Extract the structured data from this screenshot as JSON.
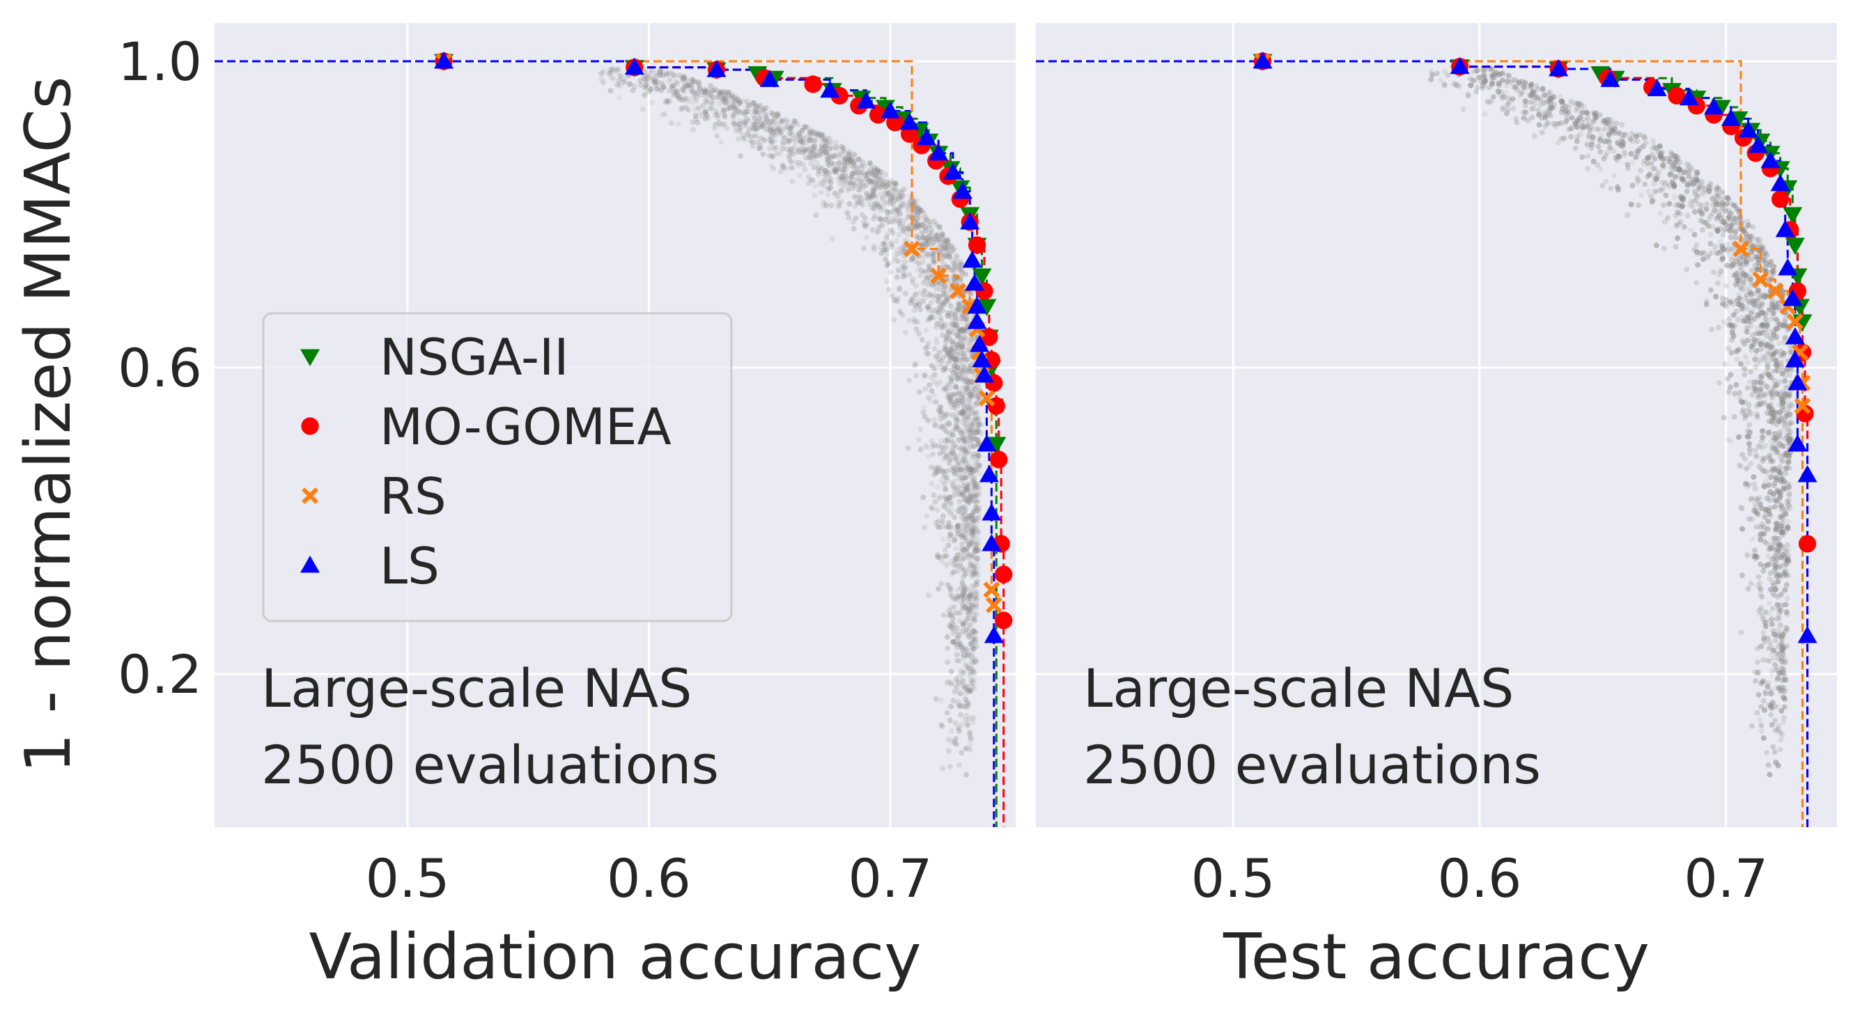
{
  "figure": {
    "ylabel": "1 - normalized MMACs",
    "background": "#EAEAF2",
    "grid_color": "#FFFFFF",
    "cloud_color": "#8C8C8C"
  },
  "legend": {
    "placement": "center-left",
    "entries": [
      {
        "label": "NSGA-II",
        "color": "#008000",
        "marker": "triangle-down"
      },
      {
        "label": "MO-GOMEA",
        "color": "#FF0000",
        "marker": "circle"
      },
      {
        "label": "RS",
        "color": "#FF7F0E",
        "marker": "x"
      },
      {
        "label": "LS",
        "color": "#0000FF",
        "marker": "triangle-up"
      }
    ]
  },
  "chart_data": [
    {
      "type": "scatter",
      "xlabel": "Validation accuracy",
      "ylabel": "1 - normalized MMACs",
      "annotation": [
        "Large-scale NAS",
        "2500 evaluations"
      ],
      "xlim": [
        0.42,
        0.752
      ],
      "ylim": [
        0.0,
        1.05
      ],
      "xticks": [
        0.5,
        0.6,
        0.7
      ],
      "yticks": [
        0.2,
        0.6,
        1.0
      ],
      "tick_labels_x": [
        "0.5",
        "0.6",
        "0.7"
      ],
      "tick_labels_y": [
        "0.2",
        "0.6",
        "1.0"
      ],
      "grid": true,
      "legend": "center-left",
      "series": [
        {
          "name": "NSGA-II",
          "color": "#008000",
          "marker": "triangle-down",
          "points": [
            [
              0.515,
              1.0
            ],
            [
              0.594,
              0.992
            ],
            [
              0.628,
              0.989
            ],
            [
              0.645,
              0.984
            ],
            [
              0.652,
              0.978
            ],
            [
              0.676,
              0.962
            ],
            [
              0.688,
              0.952
            ],
            [
              0.698,
              0.94
            ],
            [
              0.705,
              0.925
            ],
            [
              0.712,
              0.91
            ],
            [
              0.716,
              0.896
            ],
            [
              0.72,
              0.88
            ],
            [
              0.725,
              0.86
            ],
            [
              0.729,
              0.835
            ],
            [
              0.733,
              0.8
            ],
            [
              0.736,
              0.76
            ],
            [
              0.738,
              0.72
            ],
            [
              0.74,
              0.68
            ],
            [
              0.741,
              0.64
            ],
            [
              0.742,
              0.6
            ],
            [
              0.743,
              0.55
            ],
            [
              0.744,
              0.5
            ]
          ]
        },
        {
          "name": "MO-GOMEA",
          "color": "#FF0000",
          "marker": "circle",
          "points": [
            [
              0.515,
              1.0
            ],
            [
              0.594,
              0.992
            ],
            [
              0.628,
              0.989
            ],
            [
              0.648,
              0.978
            ],
            [
              0.668,
              0.97
            ],
            [
              0.679,
              0.955
            ],
            [
              0.687,
              0.942
            ],
            [
              0.695,
              0.93
            ],
            [
              0.702,
              0.92
            ],
            [
              0.708,
              0.905
            ],
            [
              0.713,
              0.89
            ],
            [
              0.719,
              0.87
            ],
            [
              0.724,
              0.85
            ],
            [
              0.729,
              0.82
            ],
            [
              0.733,
              0.79
            ],
            [
              0.736,
              0.76
            ],
            [
              0.739,
              0.7
            ],
            [
              0.741,
              0.64
            ],
            [
              0.742,
              0.61
            ],
            [
              0.743,
              0.58
            ],
            [
              0.744,
              0.55
            ],
            [
              0.745,
              0.48
            ],
            [
              0.746,
              0.37
            ],
            [
              0.747,
              0.33
            ],
            [
              0.747,
              0.27
            ]
          ]
        },
        {
          "name": "RS",
          "color": "#FF7F0E",
          "marker": "x",
          "points": [
            [
              0.515,
              1.0
            ],
            [
              0.709,
              0.755
            ],
            [
              0.72,
              0.72
            ],
            [
              0.728,
              0.7
            ],
            [
              0.733,
              0.68
            ],
            [
              0.736,
              0.65
            ],
            [
              0.737,
              0.62
            ],
            [
              0.738,
              0.59
            ],
            [
              0.74,
              0.56
            ],
            [
              0.742,
              0.31
            ],
            [
              0.743,
              0.29
            ]
          ]
        },
        {
          "name": "LS",
          "color": "#0000FF",
          "marker": "triangle-up",
          "points": [
            [
              0.515,
              1.0
            ],
            [
              0.594,
              0.992
            ],
            [
              0.628,
              0.989
            ],
            [
              0.65,
              0.976
            ],
            [
              0.675,
              0.962
            ],
            [
              0.69,
              0.948
            ],
            [
              0.7,
              0.935
            ],
            [
              0.708,
              0.92
            ],
            [
              0.715,
              0.9
            ],
            [
              0.72,
              0.88
            ],
            [
              0.726,
              0.855
            ],
            [
              0.73,
              0.83
            ],
            [
              0.733,
              0.79
            ],
            [
              0.734,
              0.74
            ],
            [
              0.735,
              0.71
            ],
            [
              0.736,
              0.68
            ],
            [
              0.736,
              0.66
            ],
            [
              0.737,
              0.63
            ],
            [
              0.738,
              0.61
            ],
            [
              0.739,
              0.59
            ],
            [
              0.74,
              0.5
            ],
            [
              0.741,
              0.46
            ],
            [
              0.742,
              0.41
            ],
            [
              0.742,
              0.37
            ],
            [
              0.743,
              0.25
            ]
          ]
        }
      ]
    },
    {
      "type": "scatter",
      "xlabel": "Test accuracy",
      "ylabel": "",
      "annotation": [
        "Large-scale NAS",
        "2500 evaluations"
      ],
      "xlim": [
        0.42,
        0.745
      ],
      "ylim": [
        0.0,
        1.05
      ],
      "xticks": [
        0.5,
        0.6,
        0.7
      ],
      "yticks": [
        0.2,
        0.6,
        1.0
      ],
      "tick_labels_x": [
        "0.5",
        "0.6",
        "0.7"
      ],
      "tick_labels_y": [],
      "grid": true,
      "legend": "",
      "series": [
        {
          "name": "NSGA-II",
          "color": "#008000",
          "marker": "triangle-down",
          "points": [
            [
              0.512,
              1.0
            ],
            [
              0.592,
              0.993
            ],
            [
              0.632,
              0.99
            ],
            [
              0.649,
              0.984
            ],
            [
              0.655,
              0.978
            ],
            [
              0.678,
              0.962
            ],
            [
              0.688,
              0.952
            ],
            [
              0.698,
              0.94
            ],
            [
              0.705,
              0.925
            ],
            [
              0.71,
              0.91
            ],
            [
              0.714,
              0.896
            ],
            [
              0.718,
              0.88
            ],
            [
              0.722,
              0.86
            ],
            [
              0.725,
              0.835
            ],
            [
              0.727,
              0.8
            ],
            [
              0.728,
              0.76
            ],
            [
              0.729,
              0.72
            ],
            [
              0.73,
              0.68
            ],
            [
              0.731,
              0.66
            ]
          ]
        },
        {
          "name": "MO-GOMEA",
          "color": "#FF0000",
          "marker": "circle",
          "points": [
            [
              0.512,
              1.0
            ],
            [
              0.592,
              0.993
            ],
            [
              0.632,
              0.99
            ],
            [
              0.652,
              0.978
            ],
            [
              0.67,
              0.966
            ],
            [
              0.68,
              0.955
            ],
            [
              0.688,
              0.942
            ],
            [
              0.695,
              0.93
            ],
            [
              0.702,
              0.915
            ],
            [
              0.707,
              0.9
            ],
            [
              0.712,
              0.88
            ],
            [
              0.718,
              0.86
            ],
            [
              0.722,
              0.82
            ],
            [
              0.726,
              0.78
            ],
            [
              0.729,
              0.7
            ],
            [
              0.731,
              0.62
            ],
            [
              0.732,
              0.54
            ],
            [
              0.733,
              0.37
            ]
          ]
        },
        {
          "name": "RS",
          "color": "#FF7F0E",
          "marker": "x",
          "points": [
            [
              0.512,
              1.0
            ],
            [
              0.706,
              0.755
            ],
            [
              0.714,
              0.715
            ],
            [
              0.72,
              0.7
            ],
            [
              0.725,
              0.68
            ],
            [
              0.728,
              0.66
            ],
            [
              0.73,
              0.62
            ],
            [
              0.731,
              0.58
            ],
            [
              0.731,
              0.55
            ]
          ]
        },
        {
          "name": "LS",
          "color": "#0000FF",
          "marker": "triangle-up",
          "points": [
            [
              0.512,
              1.0
            ],
            [
              0.592,
              0.993
            ],
            [
              0.632,
              0.99
            ],
            [
              0.653,
              0.976
            ],
            [
              0.672,
              0.964
            ],
            [
              0.685,
              0.952
            ],
            [
              0.695,
              0.94
            ],
            [
              0.702,
              0.925
            ],
            [
              0.709,
              0.91
            ],
            [
              0.713,
              0.89
            ],
            [
              0.718,
              0.87
            ],
            [
              0.722,
              0.84
            ],
            [
              0.724,
              0.78
            ],
            [
              0.725,
              0.73
            ],
            [
              0.727,
              0.69
            ],
            [
              0.728,
              0.64
            ],
            [
              0.728,
              0.61
            ],
            [
              0.729,
              0.58
            ],
            [
              0.729,
              0.5
            ],
            [
              0.733,
              0.46
            ],
            [
              0.733,
              0.25
            ]
          ]
        }
      ]
    }
  ]
}
